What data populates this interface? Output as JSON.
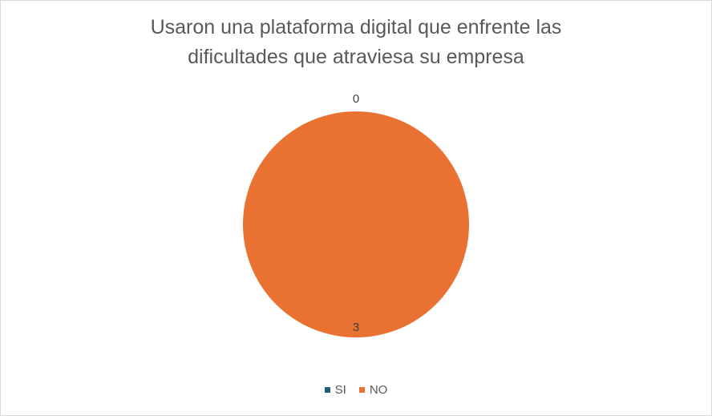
{
  "chart_data": {
    "type": "pie",
    "title_lines": [
      "Usaron una plataforma digital que enfrente las",
      "dificultades que atraviesa su empresa"
    ],
    "categories": [
      "SI",
      "NO"
    ],
    "values": [
      0,
      3
    ],
    "colors": [
      "#1f5f7a",
      "#e97132"
    ],
    "data_labels": [
      "0",
      "3"
    ],
    "legend_position": "bottom"
  }
}
